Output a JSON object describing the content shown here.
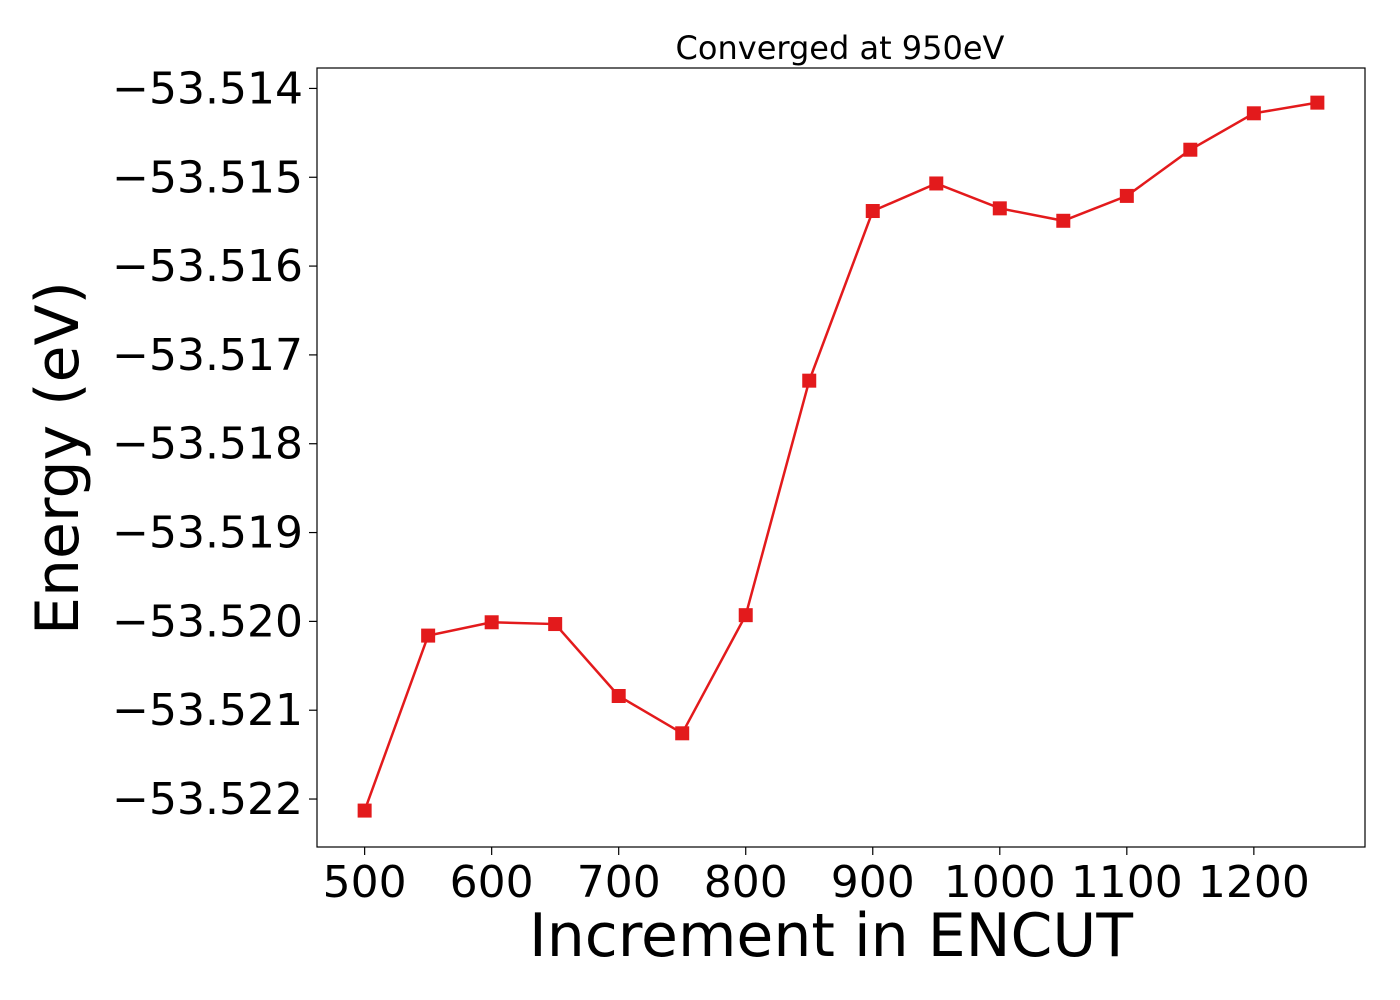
{
  "chart_data": {
    "type": "line",
    "title": "Converged at 950eV",
    "xlabel": "Increment in ENCUT",
    "ylabel": "Energy (eV)",
    "x": [
      500,
      550,
      600,
      650,
      700,
      750,
      800,
      850,
      900,
      950,
      1000,
      1050,
      1100,
      1150,
      1200,
      1250
    ],
    "series": [
      {
        "values": [
          -53.52213,
          -53.52016,
          -53.52001,
          -53.52003,
          -53.52084,
          -53.52126,
          -53.51993,
          -53.51729,
          -53.51538,
          -53.51507,
          -53.51535,
          -53.51549,
          -53.51521,
          -53.51469,
          -53.51428,
          -53.51416
        ],
        "color": "#e31a1c",
        "marker": "square"
      }
    ],
    "xticks": [
      500,
      600,
      700,
      800,
      900,
      1000,
      1100,
      1200
    ],
    "xtick_labels": [
      "500",
      "600",
      "700",
      "800",
      "900",
      "1000",
      "1100",
      "1200"
    ],
    "yticks": [
      -53.514,
      -53.515,
      -53.516,
      -53.517,
      -53.518,
      -53.519,
      -53.52,
      -53.521,
      -53.522
    ],
    "ytick_labels": [
      "−53.514",
      "−53.515",
      "−53.516",
      "−53.517",
      "−53.518",
      "−53.519",
      "−53.520",
      "−53.521",
      "−53.522"
    ],
    "xlim": [
      462.5,
      1287.5
    ],
    "ylim": [
      -53.52254,
      -53.51377
    ],
    "grid": false,
    "legend": "none"
  }
}
